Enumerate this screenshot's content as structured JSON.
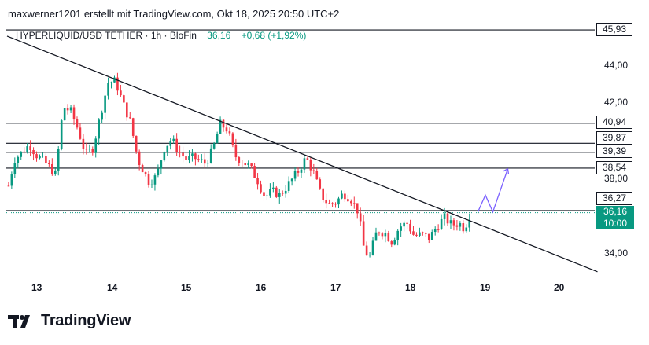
{
  "header": {
    "attribution": "maxwerner1201 erstellt mit TradingView.com, Okt 18, 2025 20:50 UTC+2"
  },
  "symbol_bar": {
    "name": "HYPERLIQUID/USD TETHER",
    "interval": "1h",
    "exchange": "BloFin",
    "price": "36,16",
    "change": "+0,68 (+1,92%)"
  },
  "price_axis": {
    "ticks": [
      "44,00",
      "42,00",
      "38,00",
      "34,00"
    ],
    "level_labels": [
      "45,93",
      "40,94",
      "39,87",
      "39,39",
      "38,54",
      "36,27"
    ],
    "current_price": "36,16",
    "countdown": "10:00"
  },
  "time_axis": {
    "ticks": [
      "13",
      "14",
      "15",
      "16",
      "17",
      "18",
      "19",
      "20"
    ]
  },
  "logo": {
    "text": "TradingView"
  },
  "colors": {
    "up": "#089981",
    "down": "#f23645",
    "line": "#131722",
    "projection": "#7b61ff"
  },
  "chart_data": {
    "type": "candlestick",
    "ylim": [
      32.5,
      46.5
    ],
    "x_unit": "day of October 2025",
    "xlim": [
      12.6,
      20.5
    ],
    "horizontal_levels": [
      45.93,
      40.94,
      39.87,
      39.39,
      38.54,
      36.27
    ],
    "current_price": 36.16,
    "trendline": [
      [
        12.6,
        45.6
      ],
      [
        20.5,
        33.0
      ]
    ],
    "projection_path": [
      [
        18.9,
        36.2
      ],
      [
        19.0,
        37.1
      ],
      [
        19.1,
        36.2
      ],
      [
        19.3,
        38.5
      ]
    ],
    "close_path": [
      [
        12.62,
        37.6
      ],
      [
        12.7,
        39.0
      ],
      [
        12.8,
        39.4
      ],
      [
        12.9,
        39.8
      ],
      [
        13.0,
        39.2
      ],
      [
        13.1,
        38.9
      ],
      [
        13.25,
        38.2
      ],
      [
        13.35,
        41.8
      ],
      [
        13.45,
        41.6
      ],
      [
        13.55,
        40.6
      ],
      [
        13.65,
        39.3
      ],
      [
        13.75,
        39.6
      ],
      [
        13.85,
        41.4
      ],
      [
        13.95,
        43.1
      ],
      [
        14.05,
        43.2
      ],
      [
        14.15,
        42.0
      ],
      [
        14.25,
        41.0
      ],
      [
        14.35,
        39.0
      ],
      [
        14.5,
        37.8
      ],
      [
        14.6,
        38.1
      ],
      [
        14.7,
        39.6
      ],
      [
        14.8,
        40.1
      ],
      [
        14.9,
        39.4
      ],
      [
        15.0,
        39.0
      ],
      [
        15.1,
        39.1
      ],
      [
        15.25,
        38.8
      ],
      [
        15.35,
        39.5
      ],
      [
        15.45,
        40.9
      ],
      [
        15.55,
        40.6
      ],
      [
        15.65,
        39.2
      ],
      [
        15.75,
        38.9
      ],
      [
        15.85,
        38.6
      ],
      [
        15.95,
        37.9
      ],
      [
        16.05,
        37.0
      ],
      [
        16.15,
        37.3
      ],
      [
        16.25,
        37.1
      ],
      [
        16.35,
        37.6
      ],
      [
        16.5,
        38.4
      ],
      [
        16.6,
        39.1
      ],
      [
        16.7,
        38.3
      ],
      [
        16.8,
        37.1
      ],
      [
        16.9,
        36.6
      ],
      [
        17.0,
        36.7
      ],
      [
        17.1,
        37.2
      ],
      [
        17.2,
        36.9
      ],
      [
        17.3,
        36.2
      ],
      [
        17.38,
        34.1
      ],
      [
        17.45,
        33.8
      ],
      [
        17.55,
        35.2
      ],
      [
        17.65,
        35.1
      ],
      [
        17.75,
        34.6
      ],
      [
        17.85,
        35.4
      ],
      [
        17.95,
        35.6
      ],
      [
        18.05,
        34.9
      ],
      [
        18.15,
        35.0
      ],
      [
        18.25,
        34.8
      ],
      [
        18.35,
        35.4
      ],
      [
        18.45,
        35.9
      ],
      [
        18.55,
        35.5
      ],
      [
        18.65,
        35.6
      ],
      [
        18.72,
        35.3
      ],
      [
        18.8,
        36.16
      ]
    ]
  }
}
